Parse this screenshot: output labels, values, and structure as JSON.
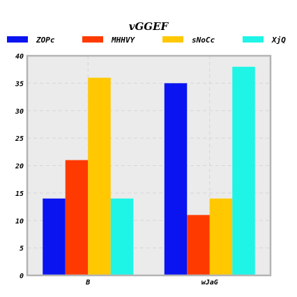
{
  "chart_data": {
    "type": "bar",
    "title": "vGGEF",
    "xlabel": "",
    "ylabel": "",
    "categories": [
      "B",
      "wJaG"
    ],
    "series": [
      {
        "name": "ZOPc",
        "color": "#0a14f0",
        "values": [
          14,
          35
        ]
      },
      {
        "name": "MHHVY",
        "color": "#ff3a00",
        "values": [
          21,
          11
        ]
      },
      {
        "name": "sNoCc",
        "color": "#ffc800",
        "values": [
          36,
          14
        ]
      },
      {
        "name": "XjQ",
        "color": "#1ef5e6",
        "values": [
          14,
          38
        ]
      }
    ],
    "ylim": [
      0,
      40
    ],
    "yticks": [
      "0",
      "5",
      "10",
      "15",
      "20",
      "25",
      "30",
      "35",
      "40"
    ],
    "grid": true,
    "legend_position": "top",
    "background_color": "#ebebeb",
    "frame_color": "#b4b4b4"
  }
}
